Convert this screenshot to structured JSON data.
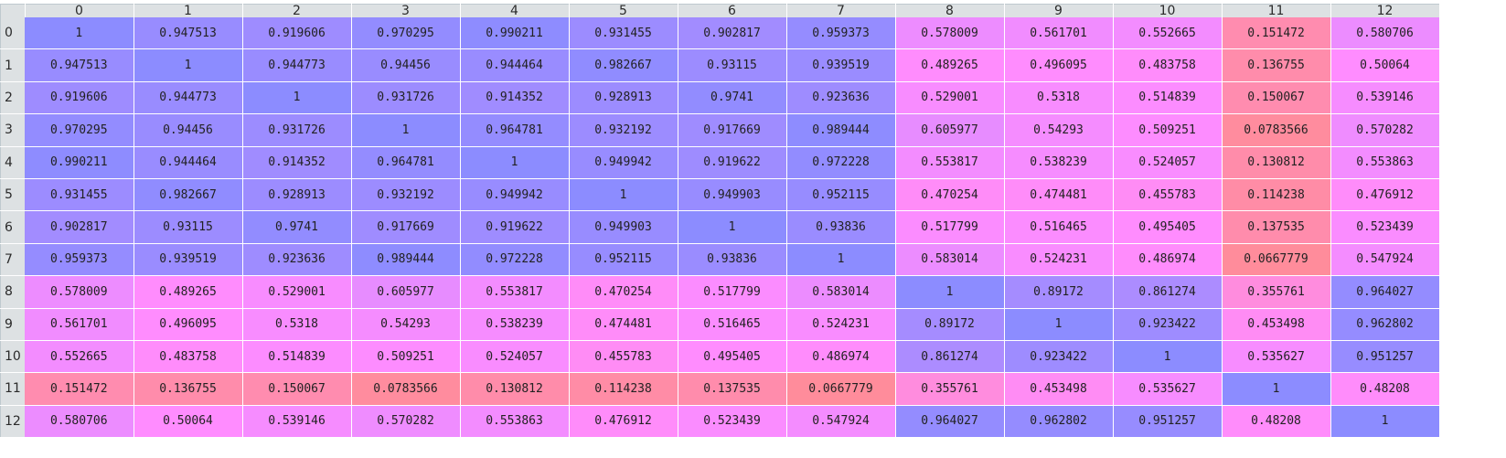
{
  "table": {
    "columns": [
      "0",
      "1",
      "2",
      "3",
      "4",
      "5",
      "6",
      "7",
      "8",
      "9",
      "10",
      "11",
      "12"
    ],
    "rows": [
      {
        "label": "0",
        "values": [
          "1",
          "0.947513",
          "0.919606",
          "0.970295",
          "0.990211",
          "0.931455",
          "0.902817",
          "0.959373",
          "0.578009",
          "0.561701",
          "0.552665",
          "0.151472",
          "0.580706"
        ]
      },
      {
        "label": "1",
        "values": [
          "0.947513",
          "1",
          "0.944773",
          "0.94456",
          "0.944464",
          "0.982667",
          "0.93115",
          "0.939519",
          "0.489265",
          "0.496095",
          "0.483758",
          "0.136755",
          "0.50064"
        ]
      },
      {
        "label": "2",
        "values": [
          "0.919606",
          "0.944773",
          "1",
          "0.931726",
          "0.914352",
          "0.928913",
          "0.9741",
          "0.923636",
          "0.529001",
          "0.5318",
          "0.514839",
          "0.150067",
          "0.539146"
        ]
      },
      {
        "label": "3",
        "values": [
          "0.970295",
          "0.94456",
          "0.931726",
          "1",
          "0.964781",
          "0.932192",
          "0.917669",
          "0.989444",
          "0.605977",
          "0.54293",
          "0.509251",
          "0.0783566",
          "0.570282"
        ]
      },
      {
        "label": "4",
        "values": [
          "0.990211",
          "0.944464",
          "0.914352",
          "0.964781",
          "1",
          "0.949942",
          "0.919622",
          "0.972228",
          "0.553817",
          "0.538239",
          "0.524057",
          "0.130812",
          "0.553863"
        ]
      },
      {
        "label": "5",
        "values": [
          "0.931455",
          "0.982667",
          "0.928913",
          "0.932192",
          "0.949942",
          "1",
          "0.949903",
          "0.952115",
          "0.470254",
          "0.474481",
          "0.455783",
          "0.114238",
          "0.476912"
        ]
      },
      {
        "label": "6",
        "values": [
          "0.902817",
          "0.93115",
          "0.9741",
          "0.917669",
          "0.919622",
          "0.949903",
          "1",
          "0.93836",
          "0.517799",
          "0.516465",
          "0.495405",
          "0.137535",
          "0.523439"
        ]
      },
      {
        "label": "7",
        "values": [
          "0.959373",
          "0.939519",
          "0.923636",
          "0.989444",
          "0.972228",
          "0.952115",
          "0.93836",
          "1",
          "0.583014",
          "0.524231",
          "0.486974",
          "0.0667779",
          "0.547924"
        ]
      },
      {
        "label": "8",
        "values": [
          "0.578009",
          "0.489265",
          "0.529001",
          "0.605977",
          "0.553817",
          "0.470254",
          "0.517799",
          "0.583014",
          "1",
          "0.89172",
          "0.861274",
          "0.355761",
          "0.964027"
        ]
      },
      {
        "label": "9",
        "values": [
          "0.561701",
          "0.496095",
          "0.5318",
          "0.54293",
          "0.538239",
          "0.474481",
          "0.516465",
          "0.524231",
          "0.89172",
          "1",
          "0.923422",
          "0.453498",
          "0.962802"
        ]
      },
      {
        "label": "10",
        "values": [
          "0.552665",
          "0.483758",
          "0.514839",
          "0.509251",
          "0.524057",
          "0.455783",
          "0.495405",
          "0.486974",
          "0.861274",
          "0.923422",
          "1",
          "0.535627",
          "0.951257"
        ]
      },
      {
        "label": "11",
        "values": [
          "0.151472",
          "0.136755",
          "0.150067",
          "0.0783566",
          "0.130812",
          "0.114238",
          "0.137535",
          "0.0667779",
          "0.355761",
          "0.453498",
          "0.535627",
          "1",
          "0.48208"
        ]
      },
      {
        "label": "12",
        "values": [
          "0.580706",
          "0.50064",
          "0.539146",
          "0.570282",
          "0.553863",
          "0.476912",
          "0.523439",
          "0.547924",
          "0.964027",
          "0.962802",
          "0.951257",
          "0.48208",
          "1"
        ]
      }
    ],
    "colors": {
      "low": "#ff8c8c",
      "mid": "#ff8cff",
      "high": "#8c8cff"
    }
  }
}
